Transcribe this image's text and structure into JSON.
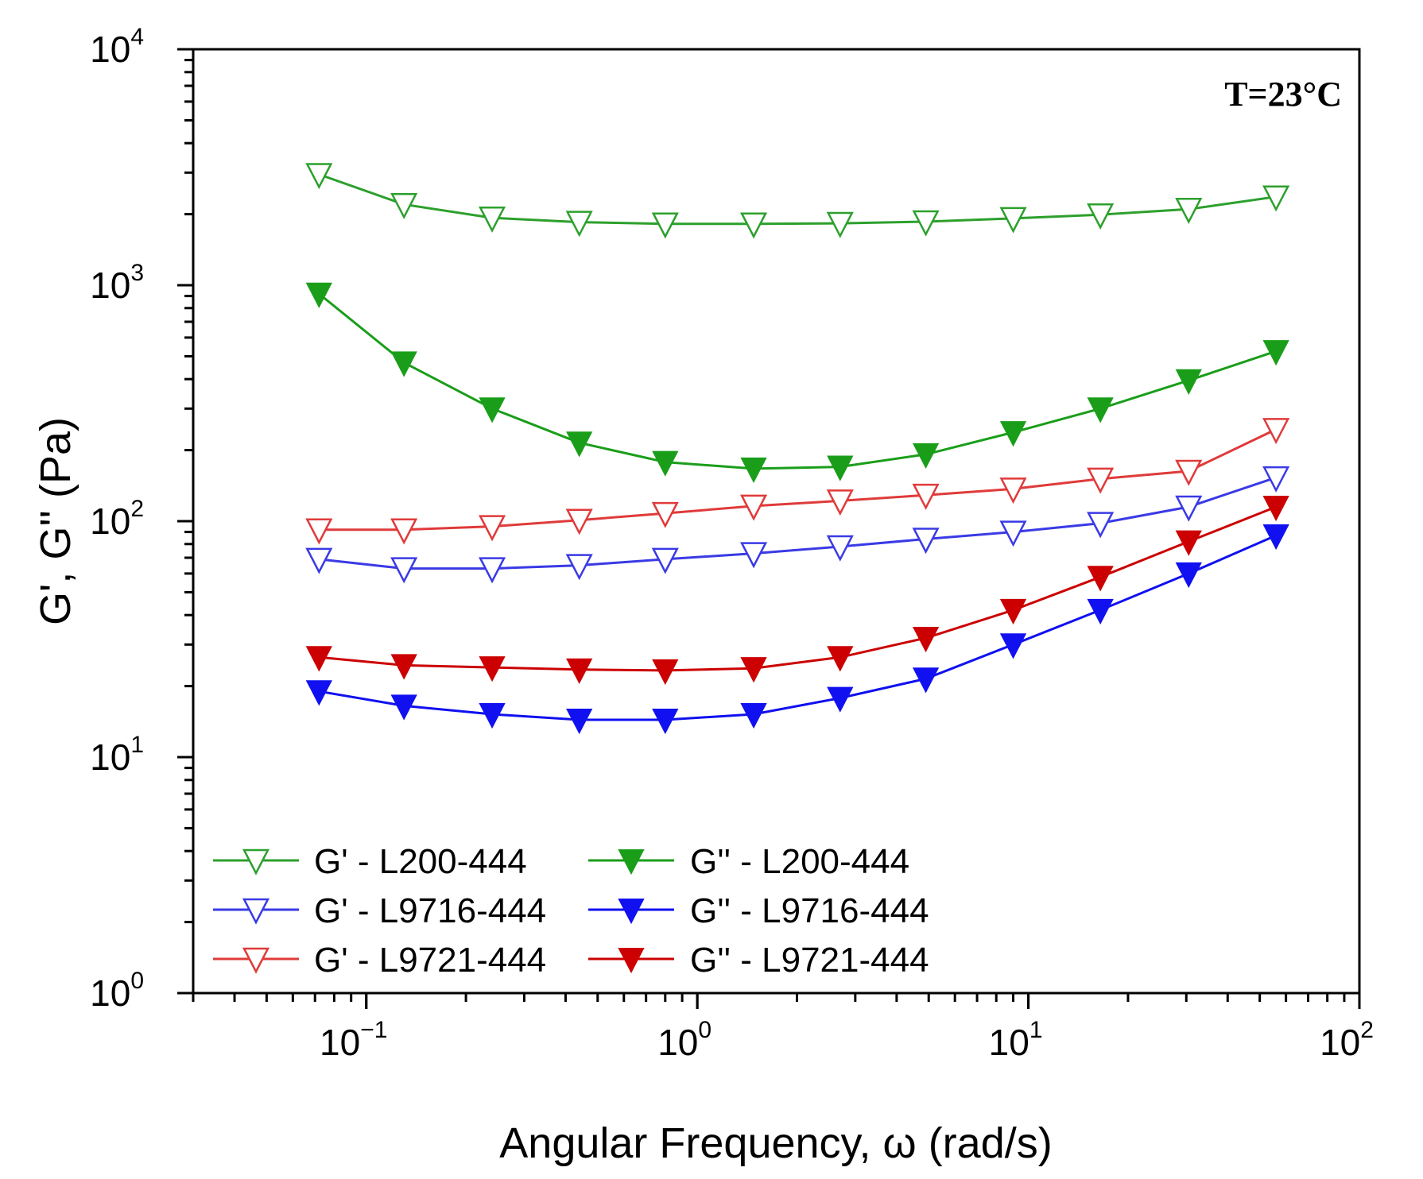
{
  "chart_data": {
    "type": "line",
    "title": "",
    "annotation": "T=23°C",
    "xlabel": "Angular Frequency, ω (rad/s)",
    "ylabel": "G', G'' (Pa)",
    "xscale": "log",
    "yscale": "log",
    "xlim": [
      0.03,
      100
    ],
    "ylim": [
      1,
      10000
    ],
    "x_ticks": [
      {
        "value": 0.1,
        "base": "10",
        "exp": "−1"
      },
      {
        "value": 1,
        "base": "10",
        "exp": "0"
      },
      {
        "value": 10,
        "base": "10",
        "exp": "1"
      },
      {
        "value": 100,
        "base": "10",
        "exp": "2"
      }
    ],
    "y_ticks": [
      {
        "value": 1,
        "base": "10",
        "exp": "0"
      },
      {
        "value": 10,
        "base": "10",
        "exp": "1"
      },
      {
        "value": 100,
        "base": "10",
        "exp": "2"
      },
      {
        "value": 1000,
        "base": "10",
        "exp": "3"
      },
      {
        "value": 10000,
        "base": "10",
        "exp": "4"
      }
    ],
    "legend_position": "bottom-left",
    "x": [
      0.072,
      0.13,
      0.24,
      0.44,
      0.8,
      1.48,
      2.7,
      4.9,
      9.0,
      16.5,
      30.5,
      56
    ],
    "series": [
      {
        "name": "G' - L200-444",
        "color": "#2ca02c",
        "marker": "triangle-down-open",
        "values": [
          2950,
          2200,
          1930,
          1850,
          1820,
          1820,
          1830,
          1860,
          1920,
          1990,
          2100,
          2370
        ]
      },
      {
        "name": "G'' - L200-444",
        "color": "#1a9e1a",
        "marker": "triangle-down-filled",
        "values": [
          920,
          470,
          300,
          215,
          178,
          167,
          170,
          192,
          238,
          300,
          395,
          525
        ]
      },
      {
        "name": "G' - L9716-444",
        "color": "#3a3ae6",
        "marker": "triangle-down-open",
        "values": [
          69,
          63,
          63,
          65,
          69,
          73,
          78,
          84,
          90,
          98,
          115,
          153
        ]
      },
      {
        "name": "G'' - L9716-444",
        "color": "#1010f0",
        "marker": "triangle-down-filled",
        "values": [
          19,
          16.5,
          15.2,
          14.4,
          14.4,
          15.2,
          17.8,
          21.5,
          30,
          42,
          60,
          87
        ]
      },
      {
        "name": "G' - L9721-444",
        "color": "#e03a3a",
        "marker": "triangle-down-open",
        "values": [
          92,
          92,
          95,
          101,
          108,
          116,
          122,
          129,
          137,
          151,
          163,
          245
        ]
      },
      {
        "name": "G'' - L9721-444",
        "color": "#cc0000",
        "marker": "triangle-down-filled",
        "values": [
          26.5,
          24.5,
          24,
          23.5,
          23.3,
          23.8,
          26.5,
          32,
          42,
          58,
          82,
          115
        ]
      }
    ],
    "legend_order": [
      0,
      1,
      2,
      3,
      4,
      5
    ]
  }
}
